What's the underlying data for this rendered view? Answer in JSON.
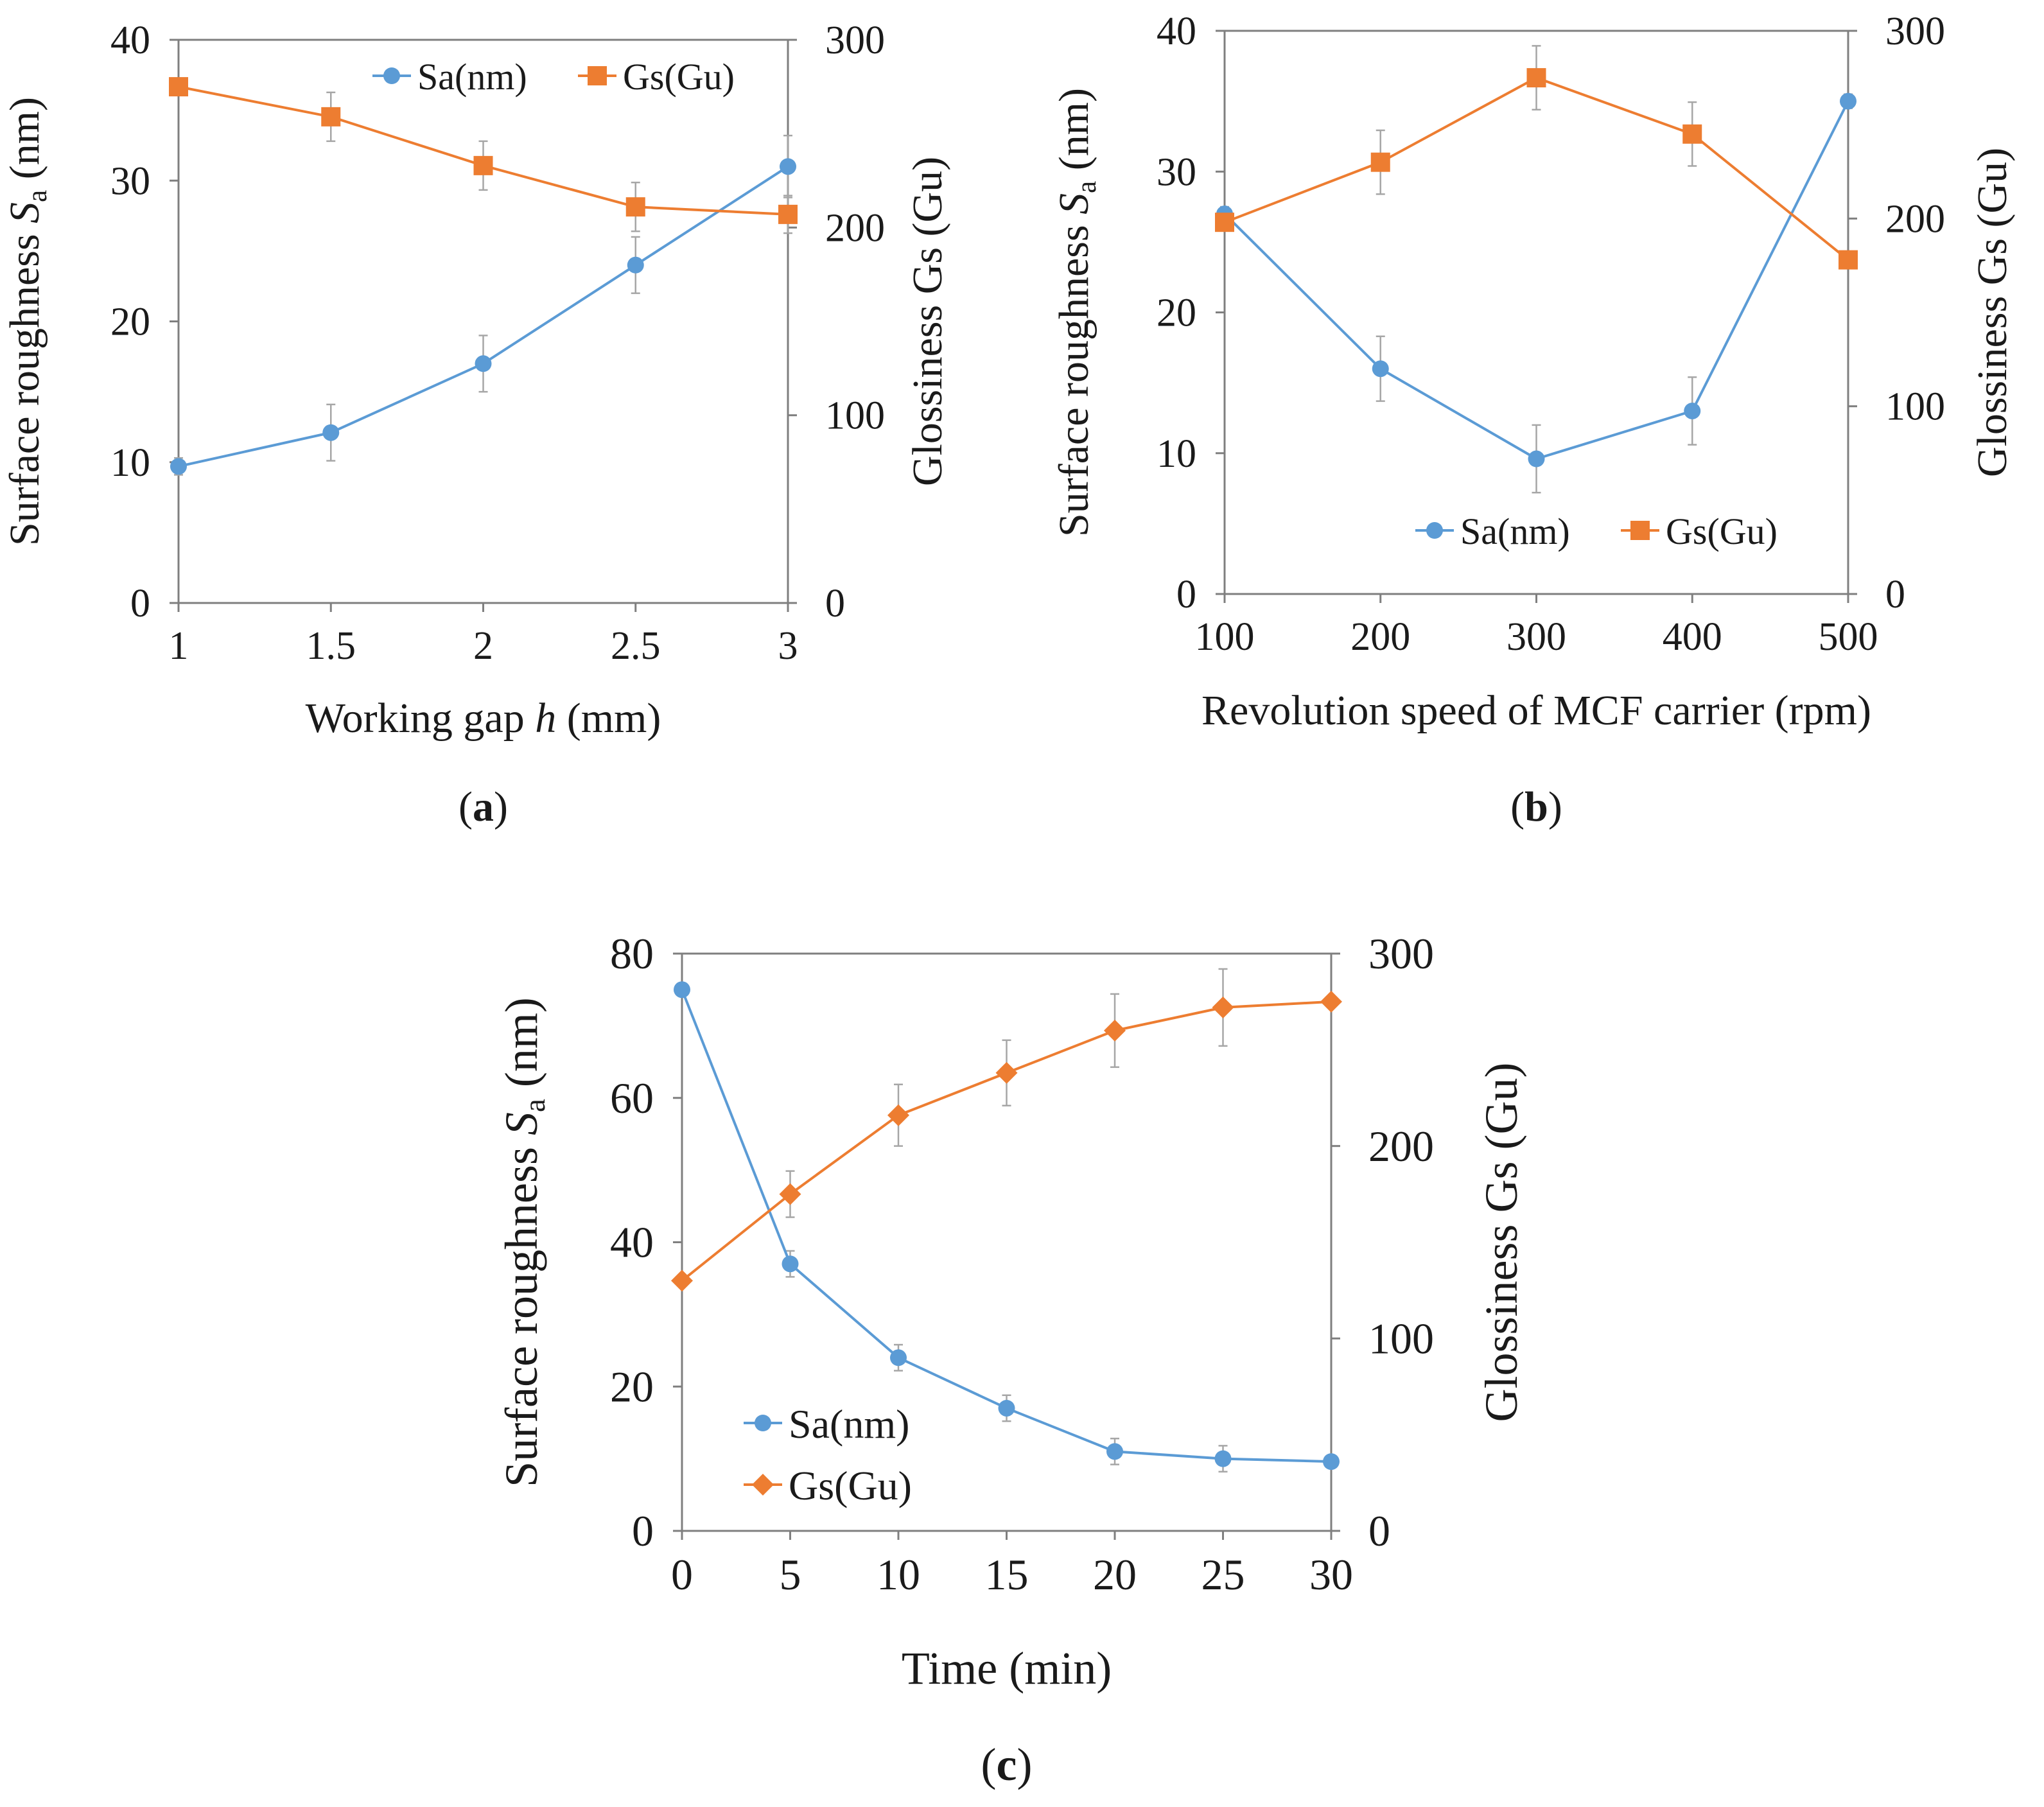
{
  "colors": {
    "sa": "#5B9BD5",
    "gs": "#ED7D31",
    "axis": "#7f7f7f",
    "error_bar": "#a6a6a6"
  },
  "chart_data": [
    {
      "id": "a",
      "type": "line",
      "panel_label": "a",
      "xlabel_parts": [
        "Working gap ",
        "h",
        " (mm)"
      ],
      "ylabel_parts": [
        "Surface roughness ",
        "S",
        "a",
        " (nm)"
      ],
      "y2label": "Glossiness Gs (Gu)",
      "x": [
        1,
        1.5,
        2,
        2.5,
        3
      ],
      "x_tick_labels": [
        "1",
        "1.5",
        "2",
        "2.5",
        "3"
      ],
      "xlim": [
        1,
        3
      ],
      "ylim": [
        0,
        40
      ],
      "y_ticks": [
        0,
        10,
        20,
        30,
        40
      ],
      "y2lim": [
        0,
        300
      ],
      "y2_ticks": [
        0,
        100,
        200,
        300
      ],
      "legend_position": "top-center",
      "legend_layout": "horizontal",
      "series": [
        {
          "name": "Sa(nm)",
          "axis": "left",
          "marker": "circle",
          "color": "#5B9BD5",
          "values": [
            9.7,
            12.1,
            17.0,
            24.0,
            31.0
          ],
          "errors": [
            0.6,
            2.0,
            2.0,
            2.0,
            2.2
          ]
        },
        {
          "name": "Gs(Gu)",
          "axis": "right",
          "marker": "square",
          "color": "#ED7D31",
          "values": [
            275,
            259,
            233,
            211,
            207
          ],
          "errors": [
            3,
            13,
            13,
            13,
            10
          ]
        }
      ]
    },
    {
      "id": "b",
      "type": "line",
      "panel_label": "b",
      "xlabel_parts": [
        "Revolution speed of MCF carrier (rpm)"
      ],
      "ylabel_parts": [
        "Surface roughness ",
        "S",
        "a",
        " (nm)"
      ],
      "y2label": "Glossiness Gs (Gu)",
      "x": [
        100,
        200,
        300,
        400,
        500
      ],
      "x_tick_labels": [
        "100",
        "200",
        "300",
        "400",
        "500"
      ],
      "xlim": [
        100,
        500
      ],
      "ylim": [
        0,
        40
      ],
      "y_ticks": [
        0,
        10,
        20,
        30,
        40
      ],
      "y2lim": [
        0,
        300
      ],
      "y2_ticks": [
        0,
        100,
        200,
        300
      ],
      "legend_position": "bottom-center",
      "legend_layout": "horizontal",
      "series": [
        {
          "name": "Sa(nm)",
          "axis": "left",
          "marker": "circle",
          "color": "#5B9BD5",
          "values": [
            27.0,
            16.0,
            9.6,
            13.0,
            35.0
          ],
          "errors": [
            0.5,
            2.3,
            2.4,
            2.4,
            0.5
          ]
        },
        {
          "name": "Gs(Gu)",
          "axis": "right",
          "marker": "square",
          "color": "#ED7D31",
          "values": [
            198,
            230,
            275,
            245,
            178
          ],
          "errors": [
            3,
            17,
            17,
            17,
            3
          ]
        }
      ]
    },
    {
      "id": "c",
      "type": "line",
      "panel_label": "c",
      "xlabel_parts": [
        "Time (min)"
      ],
      "ylabel_parts": [
        "Surface roughness ",
        "S",
        "a",
        " (nm)"
      ],
      "y2label": "Glossiness Gs (Gu)",
      "x": [
        0,
        5,
        10,
        15,
        20,
        25,
        30
      ],
      "x_tick_labels": [
        "0",
        "5",
        "10",
        "15",
        "20",
        "25",
        "30"
      ],
      "xlim": [
        0,
        30
      ],
      "ylim": [
        0,
        80
      ],
      "y_ticks": [
        0,
        20,
        40,
        60,
        80
      ],
      "y2lim": [
        0,
        300
      ],
      "y2_ticks": [
        0,
        100,
        200,
        300
      ],
      "legend_position": "bottom-left",
      "legend_layout": "vertical",
      "series": [
        {
          "name": "Sa(nm)",
          "axis": "left",
          "marker": "circle",
          "color": "#5B9BD5",
          "values": [
            75.0,
            37.0,
            24.0,
            17.0,
            11.0,
            10.0,
            9.6
          ],
          "errors": [
            0,
            1.8,
            1.8,
            1.8,
            1.8,
            1.8,
            0
          ]
        },
        {
          "name": "Gs(Gu)",
          "axis": "right",
          "marker": "diamond",
          "color": "#ED7D31",
          "values": [
            130,
            175,
            216,
            238,
            260,
            272,
            275
          ],
          "errors": [
            0,
            12,
            16,
            17,
            19,
            20,
            0
          ]
        }
      ]
    }
  ]
}
